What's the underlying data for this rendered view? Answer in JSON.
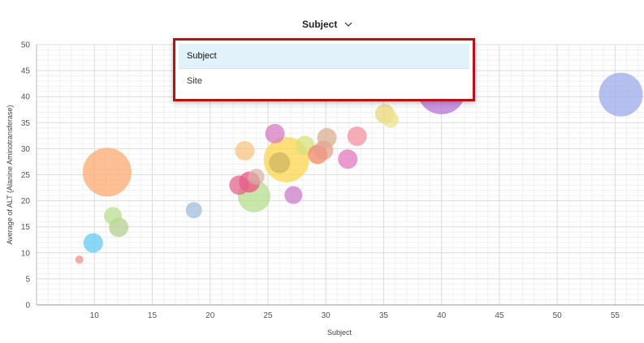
{
  "selector": {
    "label": "Subject",
    "icon": "chevron-down-icon"
  },
  "dropdown": {
    "options": [
      "Subject",
      "Site"
    ],
    "selected": "Subject"
  },
  "chart_data": {
    "type": "scatter",
    "xlabel": "Subject",
    "ylabel": "Average of ALT (Alanine Aminotransferase)",
    "xlim": [
      5,
      57.5
    ],
    "ylim": [
      0,
      50
    ],
    "xticks": [
      10,
      15,
      20,
      25,
      30,
      35,
      40,
      45,
      50,
      55
    ],
    "yticks": [
      0,
      5,
      10,
      15,
      20,
      25,
      30,
      35,
      40,
      45,
      50
    ],
    "grid": true,
    "points": [
      {
        "x": 8.7,
        "y": 8.7,
        "size": 5,
        "color": "#f28b82"
      },
      {
        "x": 9.9,
        "y": 11.9,
        "size": 12,
        "color": "#5ec8f2"
      },
      {
        "x": 11.1,
        "y": 25.5,
        "size": 30,
        "color": "#fca66b"
      },
      {
        "x": 11.6,
        "y": 17.1,
        "size": 11,
        "color": "#b9de8c"
      },
      {
        "x": 12.1,
        "y": 14.9,
        "size": 12,
        "color": "#b3cd8e"
      },
      {
        "x": 18.6,
        "y": 18.2,
        "size": 10,
        "color": "#9dbbd8"
      },
      {
        "x": 22.5,
        "y": 23.0,
        "size": 12,
        "color": "#e5608a"
      },
      {
        "x": 23.0,
        "y": 29.6,
        "size": 12,
        "color": "#f7c27c"
      },
      {
        "x": 23.4,
        "y": 23.6,
        "size": 13,
        "color": "#ee4d7b"
      },
      {
        "x": 23.8,
        "y": 20.9,
        "size": 20,
        "color": "#b4dc8a"
      },
      {
        "x": 24.0,
        "y": 24.6,
        "size": 10,
        "color": "#d6b1a2"
      },
      {
        "x": 25.6,
        "y": 32.9,
        "size": 12,
        "color": "#d676c0"
      },
      {
        "x": 26.0,
        "y": 27.3,
        "size": 13,
        "color": "#cfb35f"
      },
      {
        "x": 26.6,
        "y": 27.9,
        "size": 28,
        "color": "#ffd447"
      },
      {
        "x": 27.2,
        "y": 21.1,
        "size": 11,
        "color": "#c977c8"
      },
      {
        "x": 28.2,
        "y": 30.6,
        "size": 12,
        "color": "#d8df7a"
      },
      {
        "x": 29.3,
        "y": 28.9,
        "size": 12,
        "color": "#f2845e"
      },
      {
        "x": 29.8,
        "y": 29.7,
        "size": 12,
        "color": "#e69d87"
      },
      {
        "x": 30.1,
        "y": 32.1,
        "size": 12,
        "color": "#d9ac8f"
      },
      {
        "x": 31.9,
        "y": 28.0,
        "size": 12,
        "color": "#e175bb"
      },
      {
        "x": 32.7,
        "y": 32.4,
        "size": 12,
        "color": "#f28d99"
      },
      {
        "x": 35.1,
        "y": 36.7,
        "size": 12,
        "color": "#e9d677"
      },
      {
        "x": 35.6,
        "y": 35.6,
        "size": 10,
        "color": "#eae28b"
      },
      {
        "x": 40.0,
        "y": 41.3,
        "size": 30,
        "color": "#b66bd6"
      },
      {
        "x": 55.5,
        "y": 40.4,
        "size": 27,
        "color": "#9aa7ea"
      }
    ]
  }
}
